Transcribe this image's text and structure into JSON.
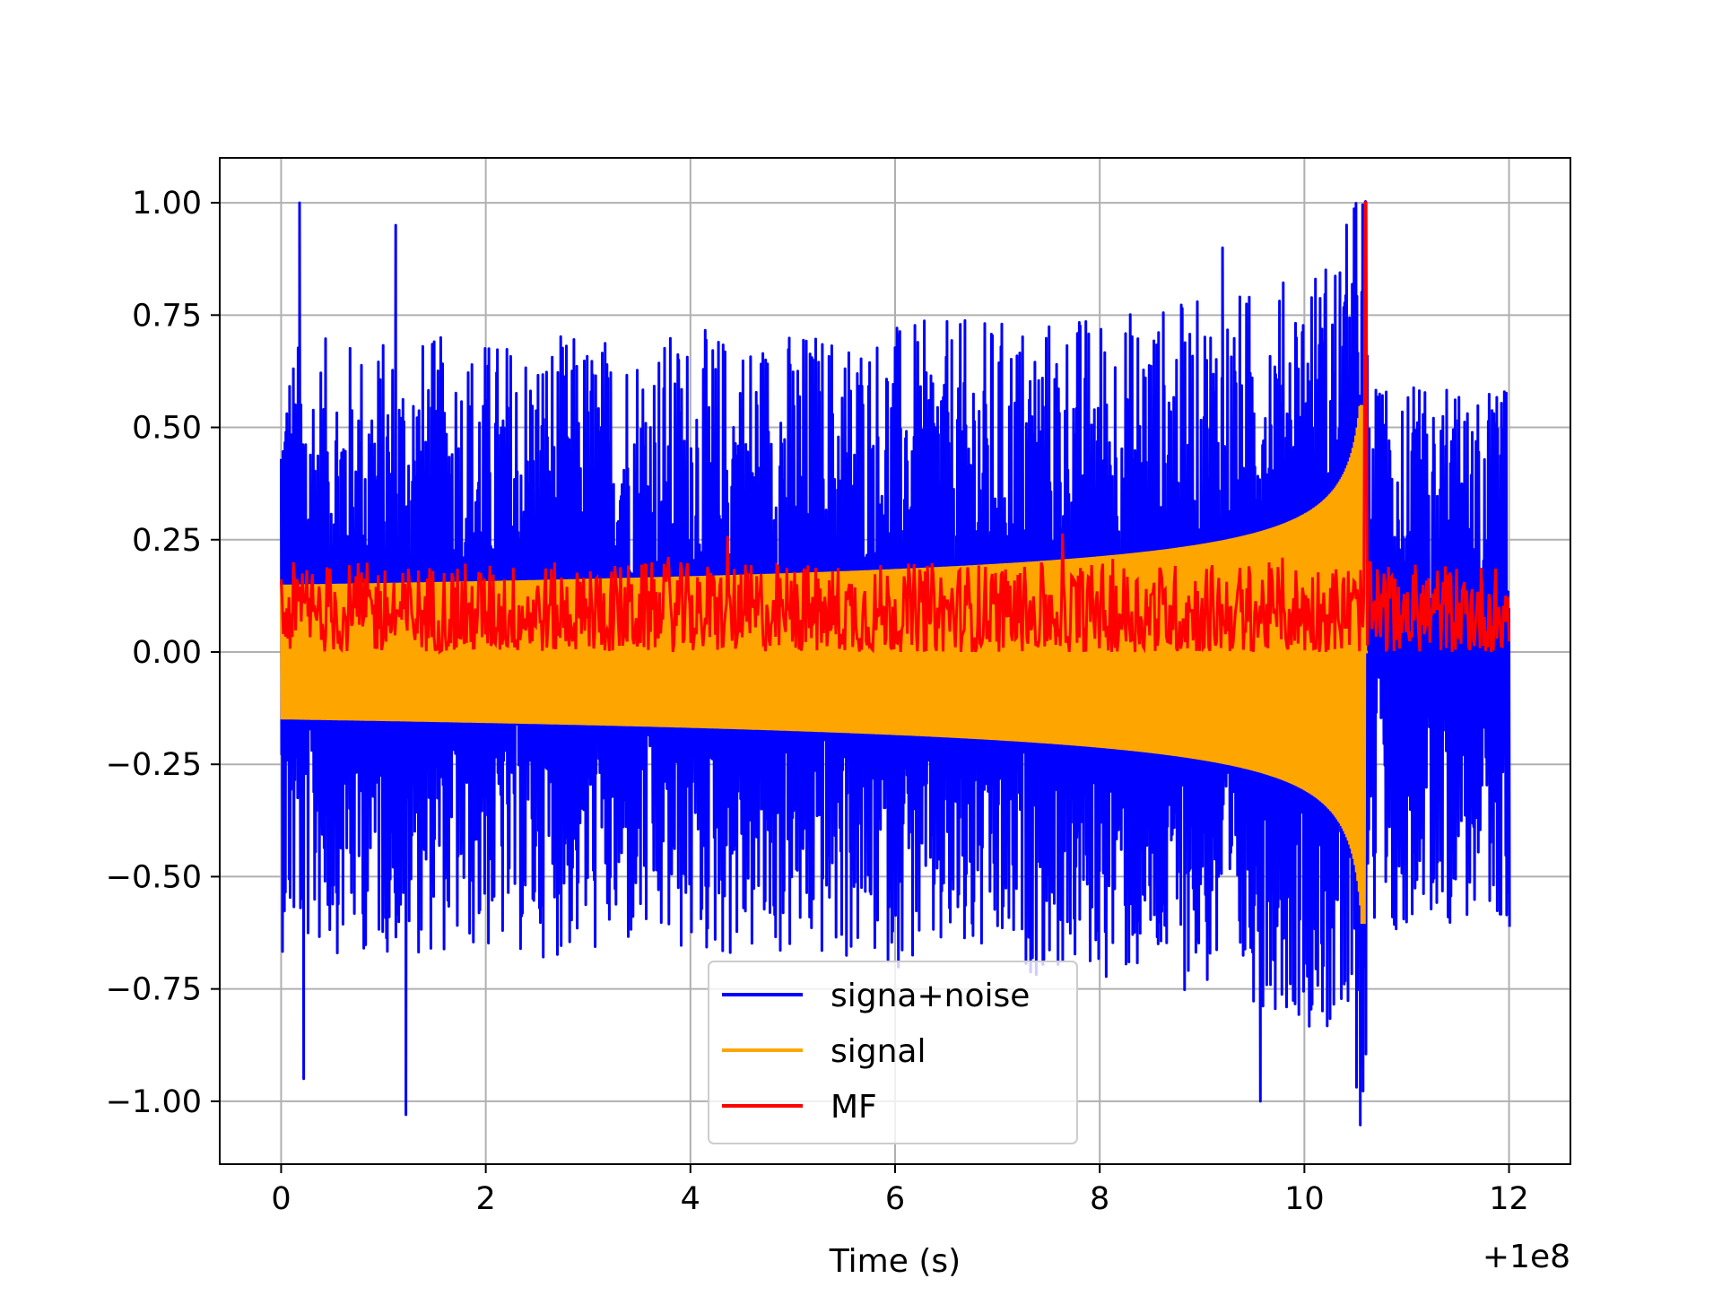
{
  "chart_data": {
    "type": "line",
    "title": "",
    "xlabel": "Time (s)",
    "ylabel": "",
    "x_offset_label": "+1e8",
    "xlim": [
      -0.6,
      12.6
    ],
    "ylim": [
      -1.14,
      1.1
    ],
    "x_ticks": [
      0,
      2,
      4,
      6,
      8,
      10,
      12
    ],
    "x_tick_labels": [
      "0",
      "2",
      "4",
      "6",
      "8",
      "10",
      "12"
    ],
    "y_ticks": [
      1.0,
      0.75,
      0.5,
      0.25,
      0.0,
      -0.25,
      -0.5,
      -0.75,
      -1.0
    ],
    "y_tick_labels": [
      "1.00",
      "0.75",
      "0.50",
      "0.25",
      "0.00",
      "−0.25",
      "−0.50",
      "−0.75",
      "−1.00"
    ],
    "grid": true,
    "legend_position": "lower-center",
    "series": [
      {
        "name": "signa+noise",
        "color": "#0000ff",
        "description_values": {
          "x_range": [
            0,
            12
          ],
          "baseline_upper": 0.15,
          "baseline_lower": -0.15,
          "max": 1.0,
          "min": -1.03,
          "chirp_end": 10.62
        }
      },
      {
        "name": "signal",
        "color": "#ffa500",
        "description_values": {
          "x_range": [
            0,
            10.62
          ],
          "envelope_start": 0.15,
          "envelope_end_upper": 0.55,
          "envelope_end_lower": -0.66,
          "merger_time": 10.6
        }
      },
      {
        "name": "MF",
        "color": "#ff0000",
        "description_values": {
          "x_range": [
            0,
            12
          ],
          "typical_range": [
            0.0,
            0.2
          ],
          "peak_x": 10.6,
          "peak_y": 1.0
        }
      }
    ]
  }
}
